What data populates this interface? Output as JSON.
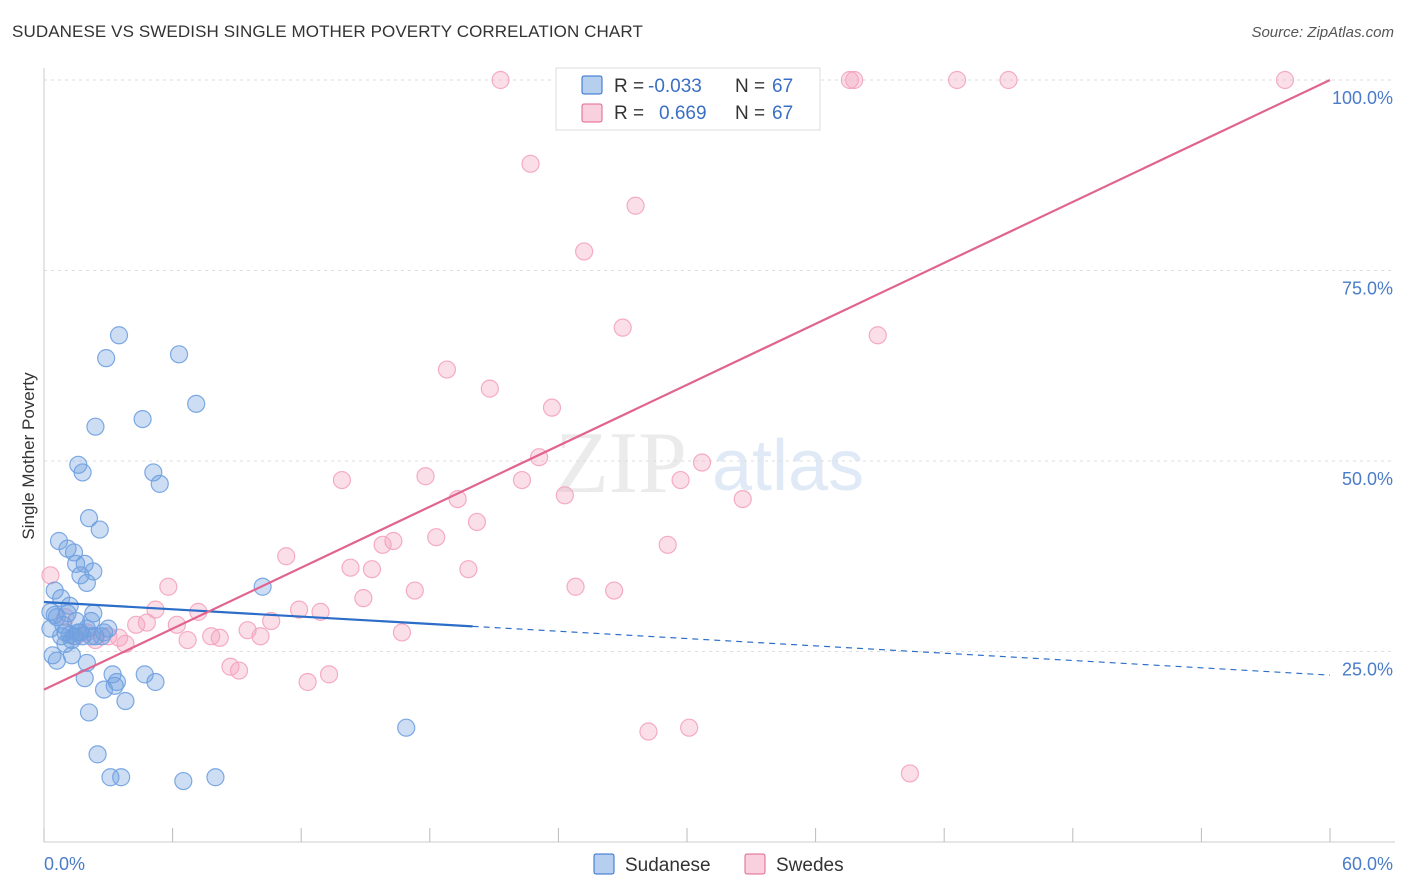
{
  "title": "SUDANESE VS SWEDISH SINGLE MOTHER POVERTY CORRELATION CHART",
  "source": "Source: ZipAtlas.com",
  "watermark": {
    "zip": "ZIP",
    "atlas": "atlas"
  },
  "colors": {
    "sudanese": "#6fa0e0",
    "sudanese_line": "#2b6dc8",
    "swedes": "#f4a3bd",
    "swedes_line": "#e0648f",
    "tick": "#4a7cc9"
  },
  "legend": {
    "rows": [
      {
        "r_label": "R =",
        "r_value": "-0.033",
        "n_label": "N =",
        "n_value": "67"
      },
      {
        "r_label": "R =",
        "r_value": "0.669",
        "n_label": "N =",
        "n_value": "67"
      }
    ]
  },
  "chart_data": {
    "type": "scatter",
    "xlabel": "",
    "ylabel": "Single Mother Poverty",
    "xlim": [
      0,
      60
    ],
    "ylim": [
      0,
      100
    ],
    "x_tick_labels": [
      "0.0%",
      "60.0%"
    ],
    "y_tick_labels": [
      "25.0%",
      "50.0%",
      "75.0%",
      "100.0%"
    ],
    "y_ticks": [
      25,
      50,
      75,
      100
    ],
    "grid": true,
    "legend_position": "top-center",
    "series": [
      {
        "name": "Sudanese",
        "trend": {
          "x": [
            0,
            20
          ],
          "y": [
            31.5,
            28.3
          ],
          "dashed_extension_to": [
            60,
            21.9
          ]
        },
        "points": [
          [
            0.3,
            30.2
          ],
          [
            0.3,
            28.0
          ],
          [
            0.4,
            24.5
          ],
          [
            0.5,
            29.8
          ],
          [
            0.5,
            33.0
          ],
          [
            0.6,
            23.8
          ],
          [
            0.7,
            39.5
          ],
          [
            0.8,
            32.0
          ],
          [
            0.9,
            28.5
          ],
          [
            1.0,
            27.5
          ],
          [
            1.0,
            26.0
          ],
          [
            1.1,
            38.5
          ],
          [
            1.2,
            31.0
          ],
          [
            1.2,
            27.2
          ],
          [
            1.3,
            24.5
          ],
          [
            1.4,
            38.0
          ],
          [
            1.4,
            27.0
          ],
          [
            1.5,
            29.0
          ],
          [
            1.5,
            36.5
          ],
          [
            1.6,
            49.5
          ],
          [
            1.6,
            27.5
          ],
          [
            1.7,
            35.0
          ],
          [
            1.8,
            48.5
          ],
          [
            1.8,
            27.0
          ],
          [
            1.9,
            21.5
          ],
          [
            1.9,
            36.5
          ],
          [
            2.0,
            34.0
          ],
          [
            2.0,
            23.5
          ],
          [
            2.1,
            17.0
          ],
          [
            2.1,
            42.5
          ],
          [
            2.2,
            29.0
          ],
          [
            2.2,
            27.0
          ],
          [
            2.3,
            35.5
          ],
          [
            2.3,
            30.0
          ],
          [
            2.4,
            54.5
          ],
          [
            2.5,
            11.5
          ],
          [
            2.6,
            41.0
          ],
          [
            2.7,
            27.0
          ],
          [
            2.8,
            20.0
          ],
          [
            2.8,
            27.5
          ],
          [
            2.9,
            63.5
          ],
          [
            3.0,
            28.0
          ],
          [
            3.1,
            8.5
          ],
          [
            3.2,
            22.0
          ],
          [
            3.3,
            20.5
          ],
          [
            3.4,
            21.0
          ],
          [
            3.5,
            66.5
          ],
          [
            3.6,
            8.5
          ],
          [
            3.8,
            18.5
          ],
          [
            4.6,
            55.5
          ],
          [
            4.7,
            22.0
          ],
          [
            5.1,
            48.5
          ],
          [
            5.2,
            21.0
          ],
          [
            5.4,
            47.0
          ],
          [
            6.3,
            64.0
          ],
          [
            6.5,
            8.0
          ],
          [
            7.1,
            57.5
          ],
          [
            8.0,
            8.5
          ],
          [
            10.2,
            33.5
          ],
          [
            16.9,
            15.0
          ],
          [
            0.8,
            27.0
          ],
          [
            1.1,
            30.0
          ],
          [
            0.6,
            29.5
          ],
          [
            1.3,
            26.5
          ],
          [
            1.7,
            27.5
          ],
          [
            2.0,
            28.0
          ],
          [
            2.4,
            27.0
          ]
        ]
      },
      {
        "name": "Swedes",
        "trend": {
          "x": [
            0,
            60
          ],
          "y": [
            20.0,
            100.0
          ]
        },
        "points": [
          [
            0.3,
            35.0
          ],
          [
            1.0,
            29.5
          ],
          [
            1.5,
            27.0
          ],
          [
            2.0,
            27.5
          ],
          [
            2.4,
            26.5
          ],
          [
            3.0,
            27.0
          ],
          [
            3.5,
            26.8
          ],
          [
            3.8,
            26.0
          ],
          [
            4.3,
            28.5
          ],
          [
            4.8,
            28.8
          ],
          [
            5.2,
            30.5
          ],
          [
            5.8,
            33.5
          ],
          [
            6.2,
            28.5
          ],
          [
            6.7,
            26.5
          ],
          [
            7.2,
            30.2
          ],
          [
            7.8,
            27.0
          ],
          [
            8.2,
            26.8
          ],
          [
            8.7,
            23.0
          ],
          [
            9.1,
            22.5
          ],
          [
            9.5,
            27.8
          ],
          [
            10.1,
            27.0
          ],
          [
            10.6,
            29.0
          ],
          [
            11.3,
            37.5
          ],
          [
            11.9,
            30.5
          ],
          [
            12.3,
            21.0
          ],
          [
            12.9,
            30.2
          ],
          [
            13.3,
            22.0
          ],
          [
            13.9,
            47.5
          ],
          [
            14.3,
            36.0
          ],
          [
            14.9,
            32.0
          ],
          [
            15.3,
            35.8
          ],
          [
            15.8,
            39.0
          ],
          [
            16.3,
            39.5
          ],
          [
            16.7,
            27.5
          ],
          [
            17.3,
            33.0
          ],
          [
            17.8,
            48.0
          ],
          [
            18.3,
            40.0
          ],
          [
            18.8,
            62.0
          ],
          [
            19.3,
            45.0
          ],
          [
            19.8,
            35.8
          ],
          [
            20.2,
            42.0
          ],
          [
            20.8,
            59.5
          ],
          [
            21.3,
            100.0
          ],
          [
            22.3,
            47.5
          ],
          [
            22.7,
            89.0
          ],
          [
            23.1,
            50.5
          ],
          [
            23.7,
            57.0
          ],
          [
            24.3,
            45.5
          ],
          [
            24.8,
            33.5
          ],
          [
            25.2,
            77.5
          ],
          [
            26.6,
            33.0
          ],
          [
            27.0,
            67.5
          ],
          [
            27.6,
            83.5
          ],
          [
            28.2,
            14.5
          ],
          [
            29.1,
            39.0
          ],
          [
            29.7,
            47.5
          ],
          [
            30.1,
            15.0
          ],
          [
            30.7,
            49.8
          ],
          [
            31.6,
            100.0
          ],
          [
            32.6,
            45.0
          ],
          [
            37.6,
            100.0
          ],
          [
            37.8,
            100.0
          ],
          [
            38.9,
            66.5
          ],
          [
            40.4,
            9.0
          ],
          [
            42.6,
            100.0
          ],
          [
            45.0,
            100.0
          ],
          [
            57.9,
            100.0
          ]
        ]
      }
    ]
  },
  "bottom_legend": [
    {
      "label": "Sudanese"
    },
    {
      "label": "Swedes"
    }
  ]
}
